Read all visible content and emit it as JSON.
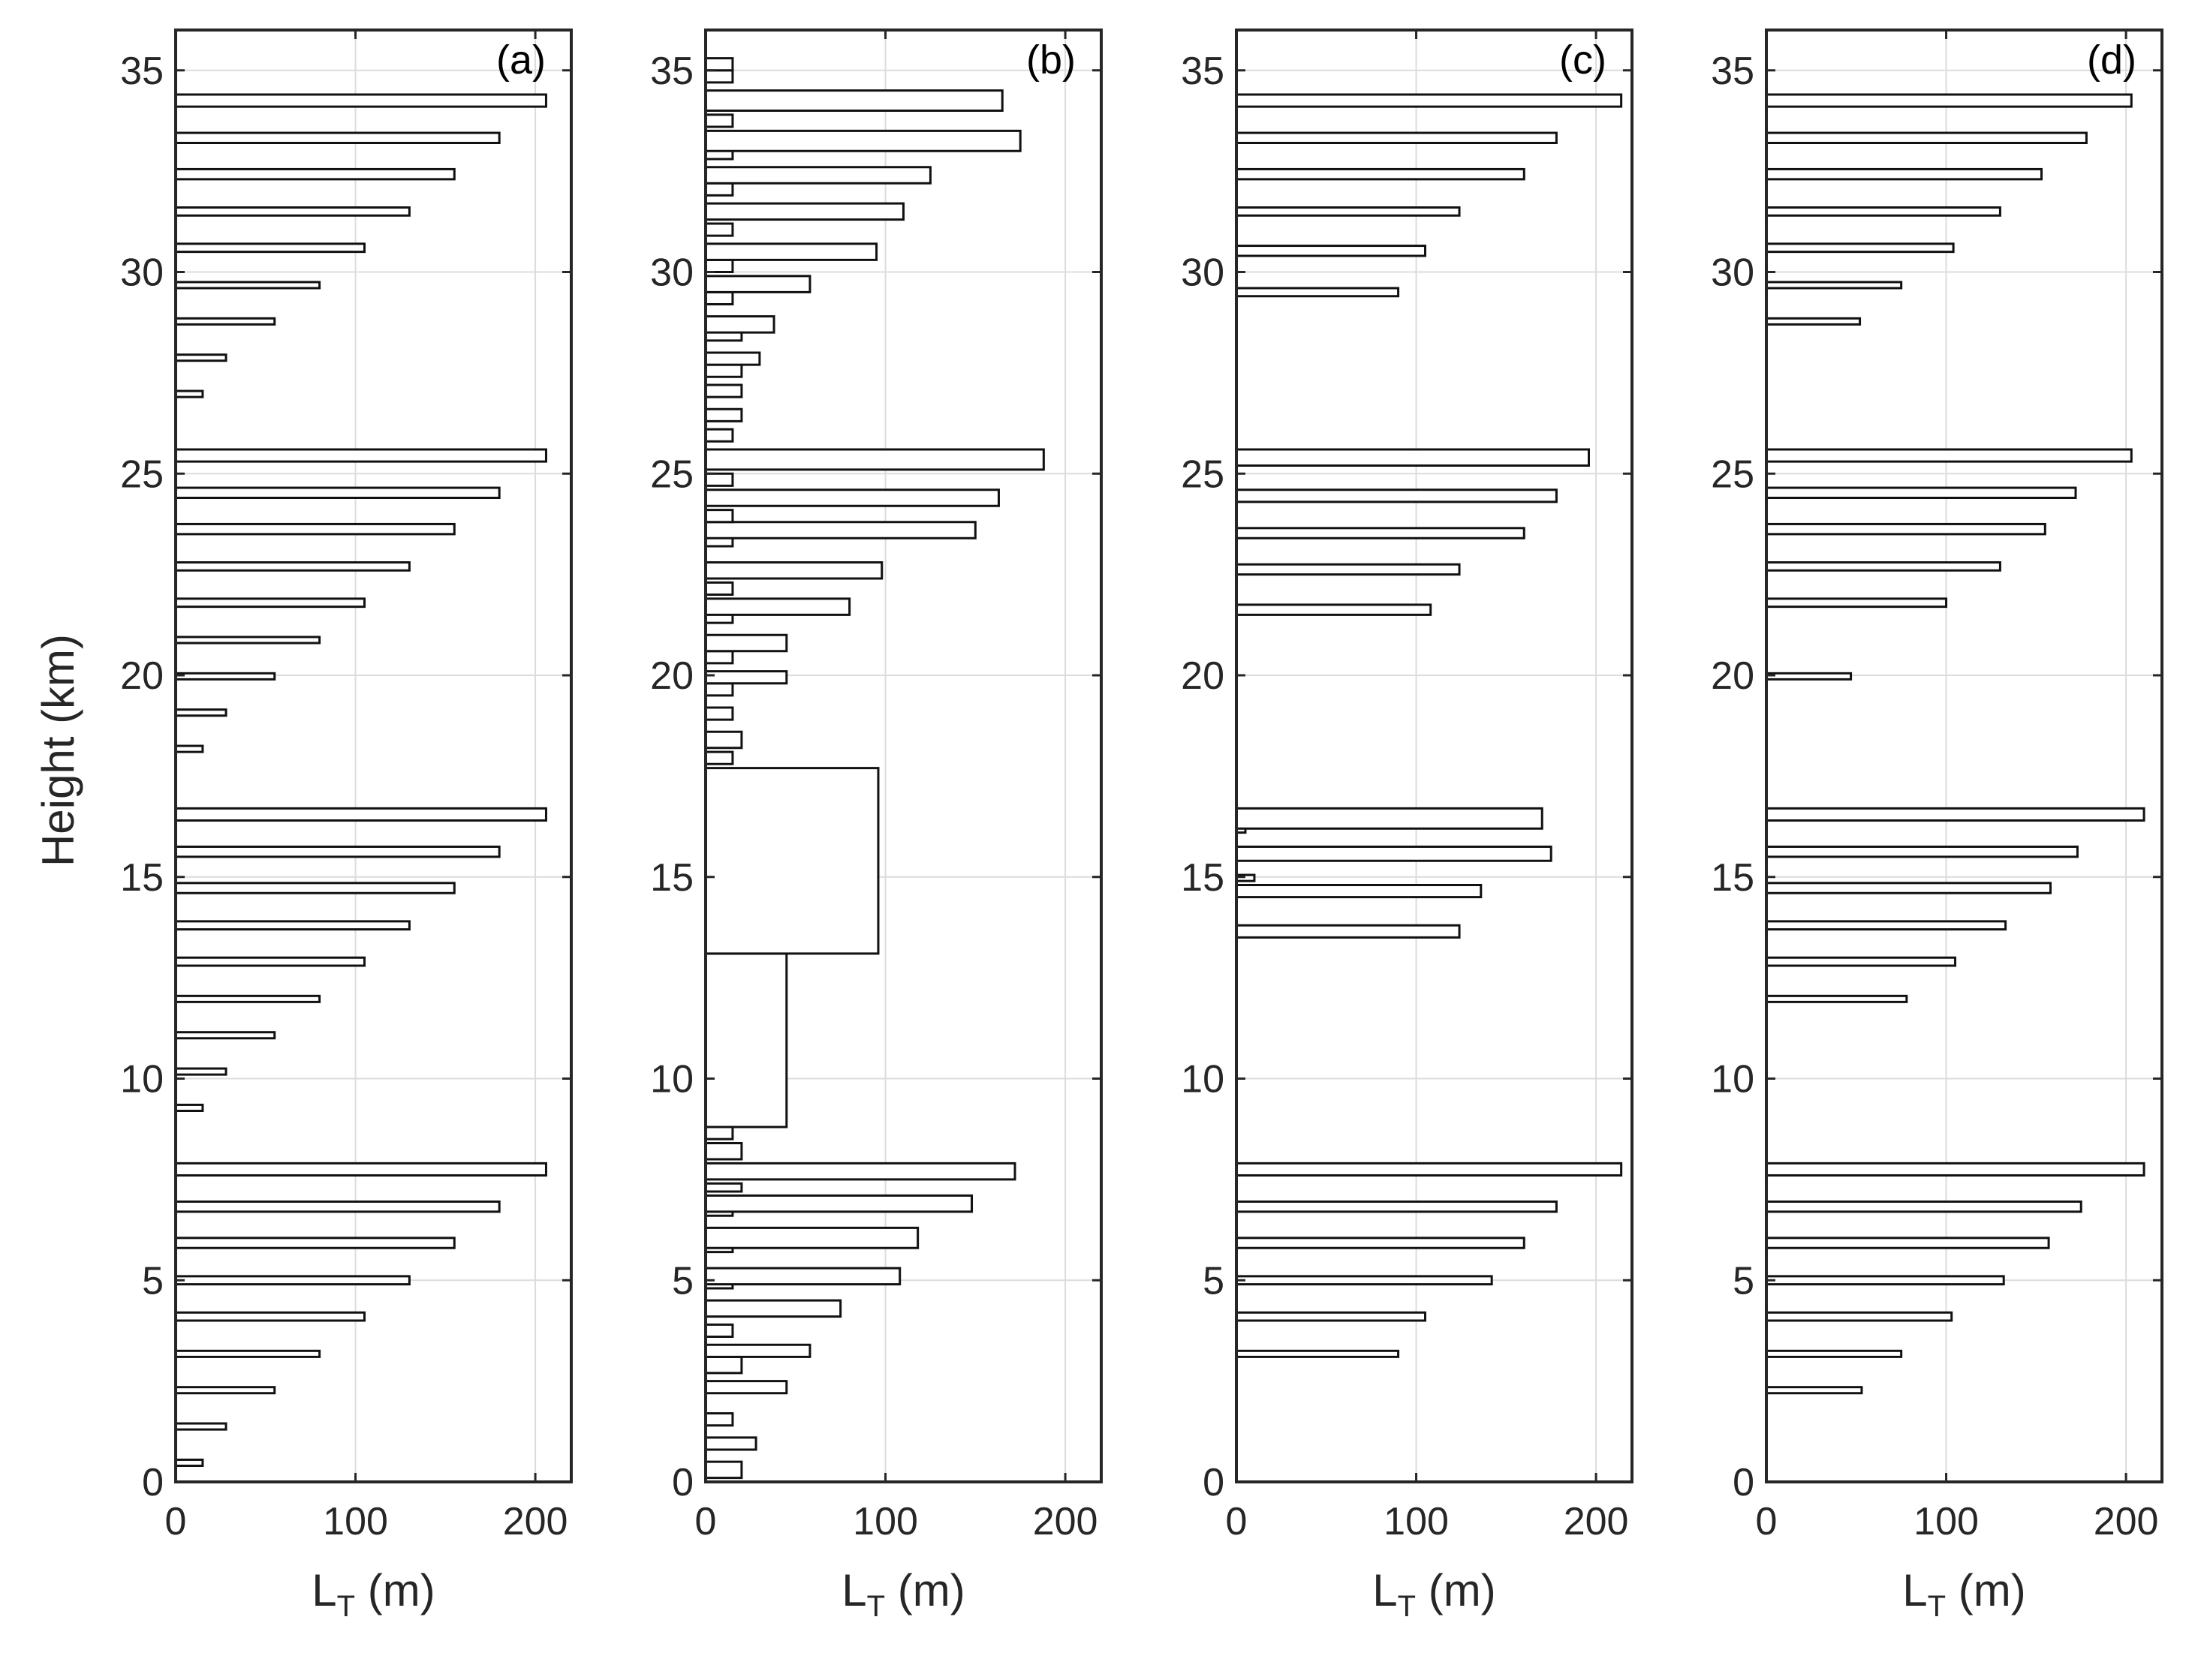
{
  "chart_data": {
    "type": "bar",
    "orientation": "horizontal",
    "ylabel": "Height (km)",
    "xlabel_main": "L",
    "xlabel_sub": "T",
    "xlabel_unit": " (m)",
    "xlim": [
      0,
      220
    ],
    "ylim": [
      0,
      36
    ],
    "xticks": [
      "0",
      "100",
      "200"
    ],
    "yticks": [
      "0",
      "5",
      "10",
      "15",
      "20",
      "25",
      "30",
      "35"
    ],
    "grid": true,
    "panels": [
      {
        "tag": "(a)",
        "bars": [
          [
            0.4,
            0.55,
            15
          ],
          [
            1.3,
            1.45,
            28
          ],
          [
            2.2,
            2.35,
            55
          ],
          [
            3.1,
            3.25,
            80
          ],
          [
            4.0,
            4.2,
            105
          ],
          [
            4.9,
            5.1,
            130
          ],
          [
            5.8,
            6.05,
            155
          ],
          [
            6.7,
            6.95,
            180
          ],
          [
            7.6,
            7.9,
            206
          ],
          [
            9.2,
            9.35,
            15
          ],
          [
            10.1,
            10.25,
            28
          ],
          [
            11.0,
            11.15,
            55
          ],
          [
            11.9,
            12.05,
            80
          ],
          [
            12.8,
            13.0,
            105
          ],
          [
            13.7,
            13.9,
            130
          ],
          [
            14.6,
            14.85,
            155
          ],
          [
            15.5,
            15.75,
            180
          ],
          [
            16.4,
            16.7,
            206
          ],
          [
            18.1,
            18.25,
            15
          ],
          [
            19.0,
            19.15,
            28
          ],
          [
            19.9,
            20.05,
            55
          ],
          [
            20.8,
            20.95,
            80
          ],
          [
            21.7,
            21.9,
            105
          ],
          [
            22.6,
            22.8,
            130
          ],
          [
            23.5,
            23.75,
            155
          ],
          [
            24.4,
            24.65,
            180
          ],
          [
            25.3,
            25.6,
            206
          ],
          [
            26.9,
            27.05,
            15
          ],
          [
            27.8,
            27.95,
            28
          ],
          [
            28.7,
            28.85,
            55
          ],
          [
            29.6,
            29.75,
            80
          ],
          [
            30.5,
            30.7,
            105
          ],
          [
            31.4,
            31.6,
            130
          ],
          [
            32.3,
            32.55,
            155
          ],
          [
            33.2,
            33.45,
            180
          ],
          [
            34.1,
            34.4,
            206
          ]
        ]
      },
      {
        "tag": "(b)",
        "bars": [
          [
            0.1,
            0.5,
            20
          ],
          [
            0.8,
            1.1,
            28
          ],
          [
            1.4,
            1.7,
            15
          ],
          [
            2.2,
            2.5,
            45
          ],
          [
            2.7,
            3.1,
            20
          ],
          [
            3.1,
            3.4,
            58
          ],
          [
            3.6,
            3.9,
            15
          ],
          [
            4.1,
            4.5,
            75
          ],
          [
            4.8,
            5.0,
            15
          ],
          [
            4.9,
            5.3,
            108
          ],
          [
            5.7,
            5.9,
            15
          ],
          [
            5.8,
            6.3,
            118
          ],
          [
            6.6,
            6.9,
            15
          ],
          [
            6.7,
            7.1,
            148
          ],
          [
            7.2,
            7.4,
            20
          ],
          [
            7.5,
            7.9,
            172
          ],
          [
            8.0,
            8.4,
            20
          ],
          [
            8.5,
            8.8,
            15
          ],
          [
            8.8,
            13.1,
            45
          ],
          [
            13.1,
            17.7,
            96
          ],
          [
            17.8,
            18.1,
            15
          ],
          [
            18.2,
            18.6,
            20
          ],
          [
            18.9,
            19.2,
            15
          ],
          [
            19.5,
            19.8,
            15
          ],
          [
            19.8,
            20.1,
            45
          ],
          [
            20.3,
            20.6,
            15
          ],
          [
            20.6,
            21.0,
            45
          ],
          [
            21.3,
            21.6,
            15
          ],
          [
            21.5,
            21.9,
            80
          ],
          [
            22.0,
            22.3,
            15
          ],
          [
            22.4,
            22.8,
            98
          ],
          [
            23.2,
            23.5,
            15
          ],
          [
            23.4,
            23.8,
            150
          ],
          [
            23.8,
            24.1,
            15
          ],
          [
            24.2,
            24.6,
            163
          ],
          [
            24.7,
            25.0,
            15
          ],
          [
            25.1,
            25.6,
            188
          ],
          [
            25.8,
            26.1,
            15
          ],
          [
            26.3,
            26.6,
            20
          ],
          [
            26.9,
            27.2,
            20
          ],
          [
            27.4,
            27.7,
            20
          ],
          [
            27.7,
            28.0,
            30
          ],
          [
            28.3,
            28.6,
            20
          ],
          [
            28.5,
            28.9,
            38
          ],
          [
            29.2,
            29.5,
            15
          ],
          [
            29.5,
            29.9,
            58
          ],
          [
            30.0,
            30.3,
            15
          ],
          [
            30.3,
            30.7,
            95
          ],
          [
            30.9,
            31.2,
            15
          ],
          [
            31.3,
            31.7,
            110
          ],
          [
            31.9,
            32.2,
            15
          ],
          [
            32.2,
            32.6,
            125
          ],
          [
            32.8,
            33.1,
            15
          ],
          [
            33.0,
            33.5,
            175
          ],
          [
            33.6,
            33.9,
            15
          ],
          [
            34.0,
            34.5,
            165
          ],
          [
            34.7,
            35.0,
            15
          ],
          [
            35.0,
            35.3,
            15
          ]
        ]
      },
      {
        "tag": "(c)",
        "bars": [
          [
            3.1,
            3.25,
            90
          ],
          [
            4.0,
            4.2,
            105
          ],
          [
            4.9,
            5.1,
            142
          ],
          [
            5.8,
            6.05,
            160
          ],
          [
            6.7,
            6.95,
            178
          ],
          [
            7.6,
            7.9,
            214
          ],
          [
            13.5,
            13.8,
            124
          ],
          [
            14.5,
            14.8,
            136
          ],
          [
            14.9,
            15.05,
            10
          ],
          [
            15.4,
            15.75,
            175
          ],
          [
            16.1,
            16.4,
            5
          ],
          [
            16.2,
            16.7,
            170
          ],
          [
            21.5,
            21.75,
            108
          ],
          [
            22.5,
            22.75,
            124
          ],
          [
            23.4,
            23.65,
            160
          ],
          [
            24.3,
            24.6,
            178
          ],
          [
            25.2,
            25.6,
            196
          ],
          [
            29.4,
            29.6,
            90
          ],
          [
            30.4,
            30.65,
            105
          ],
          [
            31.4,
            31.6,
            124
          ],
          [
            32.3,
            32.55,
            160
          ],
          [
            33.2,
            33.45,
            178
          ],
          [
            34.1,
            34.4,
            214
          ]
        ]
      },
      {
        "tag": "(d)",
        "bars": [
          [
            2.2,
            2.35,
            53
          ],
          [
            3.1,
            3.25,
            75
          ],
          [
            4.0,
            4.2,
            103
          ],
          [
            4.9,
            5.1,
            132
          ],
          [
            5.8,
            6.05,
            157
          ],
          [
            6.7,
            6.95,
            175
          ],
          [
            7.6,
            7.9,
            210
          ],
          [
            11.9,
            12.05,
            78
          ],
          [
            12.8,
            13.0,
            105
          ],
          [
            13.7,
            13.9,
            133
          ],
          [
            14.6,
            14.85,
            158
          ],
          [
            15.5,
            15.75,
            173
          ],
          [
            16.4,
            16.7,
            210
          ],
          [
            19.9,
            20.05,
            47
          ],
          [
            21.7,
            21.9,
            100
          ],
          [
            22.6,
            22.8,
            130
          ],
          [
            23.5,
            23.75,
            155
          ],
          [
            24.4,
            24.65,
            172
          ],
          [
            25.3,
            25.6,
            203
          ],
          [
            28.7,
            28.85,
            52
          ],
          [
            29.6,
            29.75,
            75
          ],
          [
            30.5,
            30.7,
            104
          ],
          [
            31.4,
            31.6,
            130
          ],
          [
            32.3,
            32.55,
            153
          ],
          [
            33.2,
            33.45,
            178
          ],
          [
            34.1,
            34.4,
            203
          ]
        ]
      }
    ]
  }
}
